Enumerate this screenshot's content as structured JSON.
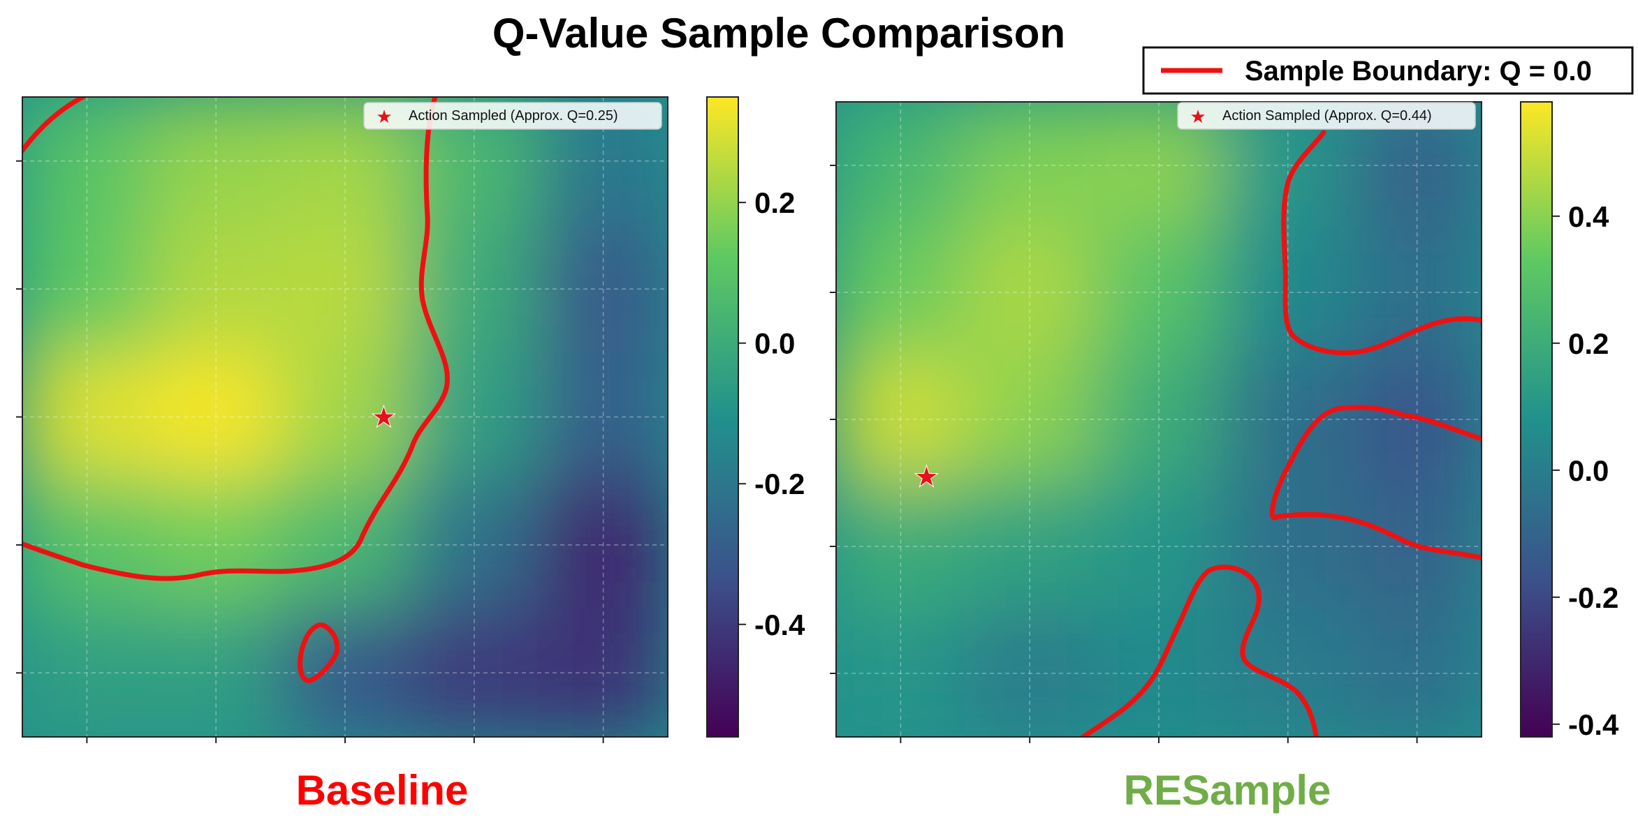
{
  "figure_title": "Q-Value Sample Comparison",
  "legend": {
    "label": "Sample Boundary: Q = 0.0",
    "color": "#ee1111",
    "placement": "top-right"
  },
  "colors": {
    "boundary": "#ee1111",
    "baseline_label": "#ff0000",
    "resample_label": "#70ad47",
    "star": "#e8101a",
    "colormap": [
      "#440154",
      "#3b528b",
      "#21918c",
      "#5ec962",
      "#fde725"
    ]
  },
  "chart_data": [
    {
      "type": "heatmap",
      "name": "Baseline",
      "subtitle": "Baseline",
      "subtitle_color": "#ff0000",
      "colorbar": {
        "range": [
          -0.56,
          0.35
        ],
        "ticks": [
          "0.2",
          "0.0",
          "-0.2",
          "-0.4"
        ],
        "tick_values": [
          0.2,
          0.0,
          -0.2,
          -0.4
        ]
      },
      "grid": true,
      "heatmap": {
        "rows": 5,
        "cols": 5,
        "values": [
          [
            0.1,
            0.2,
            0.22,
            0.05,
            -0.2
          ],
          [
            0.12,
            0.24,
            0.25,
            0.0,
            -0.3
          ],
          [
            0.3,
            0.34,
            0.22,
            -0.05,
            -0.28
          ],
          [
            0.1,
            0.15,
            0.05,
            -0.22,
            -0.45
          ],
          [
            -0.05,
            -0.05,
            -0.3,
            -0.4,
            -0.42
          ]
        ]
      },
      "sampled_action": {
        "label": "Action Sampled (Approx. Q=0.25)",
        "x": 2.8,
        "y": 2.5
      },
      "boundary_level": 0.0
    },
    {
      "type": "heatmap",
      "name": "RESample",
      "subtitle": "RESample",
      "subtitle_color": "#70ad47",
      "colorbar": {
        "range": [
          -0.42,
          0.58
        ],
        "ticks": [
          "0.4",
          "0.2",
          "0.0",
          "-0.2",
          "-0.4"
        ],
        "tick_values": [
          0.4,
          0.2,
          0.0,
          -0.2,
          -0.4
        ]
      },
      "grid": true,
      "heatmap": {
        "rows": 5,
        "cols": 5,
        "values": [
          [
            0.25,
            0.38,
            0.4,
            0.1,
            -0.1
          ],
          [
            0.35,
            0.45,
            0.3,
            0.05,
            -0.05
          ],
          [
            0.5,
            0.4,
            0.2,
            -0.05,
            -0.15
          ],
          [
            0.2,
            0.15,
            0.1,
            -0.05,
            -0.1
          ],
          [
            0.1,
            0.0,
            0.05,
            0.0,
            -0.05
          ]
        ]
      },
      "sampled_action": {
        "label": "Action Sampled (Approx. Q=0.44)",
        "x": 0.7,
        "y": 2.95
      },
      "boundary_level": 0.0
    }
  ]
}
